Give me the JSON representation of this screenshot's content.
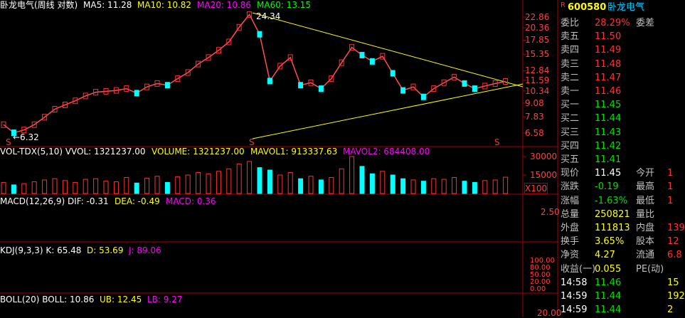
{
  "chart": {
    "header": [
      {
        "text": "卧龙电气(周线 对数)",
        "color": "#ffffff"
      },
      {
        "text": "MA5: 11.28",
        "color": "#ffffff"
      },
      {
        "text": "MA10: 10.82",
        "color": "#ffff00"
      },
      {
        "text": "MA20: 10.86",
        "color": "#ff00ff"
      },
      {
        "text": "MA60: 13.15",
        "color": "#00ff00"
      }
    ],
    "price_ticks": [
      22.86,
      20.36,
      17.85,
      15.35,
      12.84,
      11.59,
      10.34,
      9.08,
      7.83,
      6.58
    ],
    "high_label": "24.34",
    "low_label": "←6.32",
    "signal": "S",
    "closes": [
      7.2,
      6.6,
      6.8,
      7.2,
      7.8,
      8.5,
      8.9,
      9.3,
      9.8,
      10.2,
      10.3,
      10.4,
      10.6,
      10.1,
      10.8,
      11.2,
      11.0,
      11.8,
      12.6,
      13.8,
      14.8,
      16.0,
      17.5,
      20.5,
      23.5,
      19.0,
      11.5,
      13.5,
      14.8,
      11.0,
      11.3,
      10.6,
      11.8,
      14.0,
      16.5,
      15.2,
      14.2,
      15.0,
      12.5,
      10.4,
      10.8,
      9.7,
      10.6,
      11.3,
      12.0,
      11.2,
      10.6,
      10.9,
      11.2,
      11.45
    ],
    "vol_header": [
      {
        "text": "VOL-TDX(5,10) VVOL: 1321237.00",
        "color": "#ffffff"
      },
      {
        "text": "VOLUME: 1321237.00",
        "color": "#ffff00"
      },
      {
        "text": "MAVOL1: 913337.63",
        "color": "#ffff00"
      },
      {
        "text": "MAVOL2: 684408.00",
        "color": "#ff00ff"
      }
    ],
    "vol_ticks": [
      30000,
      15000
    ],
    "vol_unit": "X100",
    "volumes": [
      9000,
      7000,
      8000,
      9500,
      11000,
      12000,
      10500,
      9000,
      11500,
      12000,
      10000,
      9500,
      13000,
      8500,
      12500,
      14000,
      9000,
      13500,
      15000,
      17000,
      16000,
      18000,
      20000,
      24000,
      26000,
      21000,
      19000,
      15000,
      17000,
      12000,
      14000,
      11000,
      13000,
      20000,
      30000,
      22000,
      16000,
      18000,
      15000,
      12000,
      11000,
      10000,
      12000,
      11500,
      13000,
      10000,
      9000,
      10500,
      11000,
      13212
    ],
    "macd_header": [
      {
        "text": "MACD(12,26,9) DIF: -0.31",
        "color": "#ffffff"
      },
      {
        "text": "DEA: -0.49",
        "color": "#ffff00"
      },
      {
        "text": "MACD: 0.36",
        "color": "#ff00ff"
      }
    ],
    "macd_tick": "2.50",
    "kdj_header": [
      {
        "text": "KDJ(9,3,3) K: 65.48",
        "color": "#ffffff"
      },
      {
        "text": "D: 53.69",
        "color": "#ffff00"
      },
      {
        "text": "J: 89.06",
        "color": "#ff00ff"
      }
    ],
    "kdj_ticks": [
      "100.00",
      "80.00",
      "50.00",
      "20.00",
      "0.00"
    ],
    "boll_header": [
      {
        "text": "BOLL(20) BOLL: 10.86",
        "color": "#ffffff"
      },
      {
        "text": "UB: 12.45",
        "color": "#ffff00"
      },
      {
        "text": "LB: 9.27",
        "color": "#ff00ff"
      }
    ],
    "boll_tick": "20.00"
  },
  "quote": {
    "flag": "R",
    "code": "600580",
    "name": "卧龙电气",
    "rows": [
      [
        "委比",
        "28.29%",
        "委差",
        ""
      ],
      [
        "卖五",
        "11.50",
        "",
        ""
      ],
      [
        "卖四",
        "11.49",
        "",
        ""
      ],
      [
        "卖三",
        "11.48",
        "",
        ""
      ],
      [
        "卖二",
        "11.47",
        "",
        ""
      ],
      [
        "卖一",
        "11.46",
        "",
        ""
      ],
      [
        "买一",
        "11.45",
        "",
        ""
      ],
      [
        "买二",
        "11.44",
        "",
        ""
      ],
      [
        "买三",
        "11.43",
        "",
        ""
      ],
      [
        "买四",
        "11.42",
        "",
        ""
      ],
      [
        "买五",
        "11.41",
        "",
        ""
      ],
      [
        "现价",
        "11.45",
        "今开",
        "1"
      ],
      [
        "涨跌",
        "-0.19",
        "最高",
        "1"
      ],
      [
        "涨幅",
        "-1.63%",
        "最低",
        "1"
      ],
      [
        "总量",
        "250821",
        "量比",
        ""
      ],
      [
        "外盘",
        "111813",
        "内盘",
        "139"
      ],
      [
        "换手",
        "3.65%",
        "股本",
        "12"
      ],
      [
        "净资",
        "4.27",
        "流通",
        "6.8"
      ],
      [
        "收益(一)",
        "0.055",
        "PE(动)",
        ""
      ],
      [
        "14:58",
        "11.46",
        "",
        "15"
      ],
      [
        "14:59",
        "11.44",
        "",
        "192"
      ],
      [
        "14:59",
        "11.44",
        "",
        "2"
      ]
    ]
  }
}
